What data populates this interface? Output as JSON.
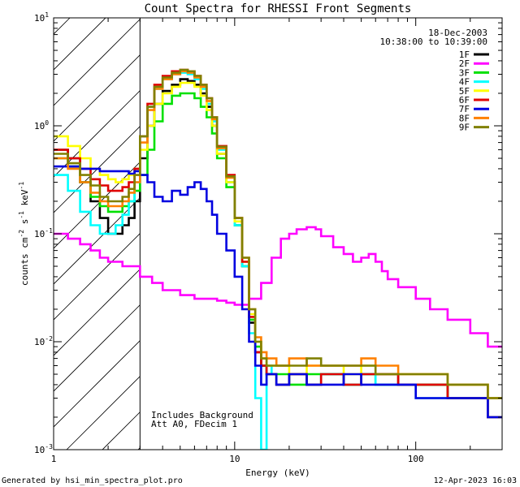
{
  "chart_data": {
    "type": "line",
    "title": "Count Spectra for RHESSI Front Segments",
    "xlabel": "Energy (keV)",
    "ylabel": "counts cm-2 s-1 keV-1",
    "xscale": "log",
    "yscale": "log",
    "xlim": [
      1,
      300
    ],
    "ylim": [
      0.001,
      10
    ],
    "x_tick_labels": [
      {
        "value": 1,
        "label": "1"
      },
      {
        "value": 10,
        "label": "10"
      },
      {
        "value": 100,
        "label": "100"
      }
    ],
    "y_tick_labels": [
      {
        "value": 10,
        "base": "10",
        "exp": "1"
      },
      {
        "value": 1,
        "base": "10",
        "exp": "0"
      },
      {
        "value": 0.1,
        "base": "10",
        "exp": "-1"
      },
      {
        "value": 0.01,
        "base": "10",
        "exp": "-2"
      },
      {
        "value": 0.001,
        "base": "10",
        "exp": "-3"
      }
    ],
    "date": "18-Dec-2003",
    "time_range": "10:38:00 to 10:39:00",
    "hatched_region_max_energy": 3,
    "annotations": [
      "Includes Background",
      "Att A0, FDecim 1"
    ],
    "footer_left": "Generated by hsi_min_spectra_plot.pro",
    "footer_right": "12-Apr-2023 16:03",
    "series": [
      {
        "name": "1F",
        "color": "#000000",
        "x": [
          1.2,
          1.4,
          1.6,
          1.8,
          2.0,
          2.2,
          2.4,
          2.6,
          2.8,
          3.0,
          3.3,
          3.6,
          4.0,
          4.5,
          5.0,
          5.5,
          6.0,
          6.5,
          7.0,
          7.5,
          8.0,
          9.0,
          10.0,
          11.0,
          12.0,
          13.0,
          14.0,
          15.0,
          17.0,
          20.0,
          25.0,
          30.0,
          40.0,
          50.0,
          60.0,
          80.0,
          100.0,
          150.0,
          200.0,
          250.0,
          300.0
        ],
        "y": [
          0.6,
          0.5,
          0.3,
          0.2,
          0.14,
          0.1,
          0.1,
          0.12,
          0.14,
          0.2,
          0.5,
          1.0,
          1.6,
          2.1,
          2.4,
          2.7,
          2.6,
          2.4,
          2.0,
          1.5,
          1.0,
          0.55,
          0.3,
          0.12,
          0.05,
          0.015,
          0.008,
          0.006,
          0.005,
          0.004,
          0.005,
          0.004,
          0.005,
          0.004,
          0.005,
          0.005,
          0.004,
          0.004,
          0.003,
          0.003,
          0.002
        ]
      },
      {
        "name": "2F",
        "color": "#ff00ff",
        "x": [
          1.2,
          1.4,
          1.6,
          1.8,
          2.0,
          2.2,
          2.4,
          2.6,
          2.8,
          3.0,
          3.5,
          4.0,
          5.0,
          6.0,
          7.0,
          8.0,
          9.0,
          10.0,
          12.0,
          14.0,
          16.0,
          18.0,
          20.0,
          22.0,
          25.0,
          28.0,
          30.0,
          35.0,
          40.0,
          45.0,
          50.0,
          55.0,
          60.0,
          65.0,
          70.0,
          80.0,
          100.0,
          120.0,
          150.0,
          200.0,
          250.0,
          300.0
        ],
        "y": [
          0.1,
          0.09,
          0.08,
          0.07,
          0.06,
          0.055,
          0.055,
          0.05,
          0.05,
          0.05,
          0.04,
          0.035,
          0.03,
          0.027,
          0.025,
          0.025,
          0.024,
          0.023,
          0.022,
          0.025,
          0.035,
          0.06,
          0.09,
          0.1,
          0.11,
          0.115,
          0.11,
          0.095,
          0.075,
          0.065,
          0.055,
          0.06,
          0.065,
          0.055,
          0.045,
          0.038,
          0.032,
          0.025,
          0.02,
          0.016,
          0.012,
          0.009
        ]
      },
      {
        "name": "3F",
        "color": "#00e000",
        "x": [
          1.2,
          1.4,
          1.6,
          1.8,
          2.0,
          2.2,
          2.4,
          2.6,
          2.8,
          3.0,
          3.3,
          3.6,
          4.0,
          4.5,
          5.0,
          5.5,
          6.0,
          6.5,
          7.0,
          7.5,
          8.0,
          9.0,
          10.0,
          11.0,
          12.0,
          13.0,
          14.0,
          15.0,
          17.0,
          20.0,
          25.0,
          30.0,
          40.0,
          50.0,
          60.0,
          80.0,
          100.0,
          150.0,
          200.0,
          250.0,
          300.0
        ],
        "y": [
          0.5,
          0.42,
          0.3,
          0.22,
          0.18,
          0.16,
          0.16,
          0.18,
          0.2,
          0.25,
          0.35,
          0.6,
          1.1,
          1.6,
          1.9,
          2.0,
          2.0,
          1.8,
          1.5,
          1.2,
          0.85,
          0.5,
          0.27,
          0.12,
          0.05,
          0.016,
          0.009,
          0.006,
          0.005,
          0.005,
          0.004,
          0.005,
          0.005,
          0.004,
          0.005,
          0.004,
          0.004,
          0.004,
          0.003,
          0.003,
          0.003
        ]
      },
      {
        "name": "4F",
        "color": "#00ffff",
        "x": [
          1.2,
          1.4,
          1.6,
          1.8,
          2.0,
          2.2,
          2.4,
          2.6,
          2.8,
          3.0,
          3.3,
          3.6,
          4.0,
          4.5,
          5.0,
          5.5,
          6.0,
          6.5,
          7.0,
          7.5,
          8.0,
          9.0,
          10.0,
          11.0,
          12.0,
          13.0,
          14.0,
          15.0,
          16.0,
          17.0,
          20.0,
          25.0,
          30.0,
          40.0,
          50.0,
          60.0,
          80.0,
          100.0,
          150.0,
          200.0,
          250.0,
          300.0
        ],
        "y": [
          0.35,
          0.25,
          0.16,
          0.12,
          0.1,
          0.1,
          0.12,
          0.15,
          0.2,
          0.3,
          0.8,
          1.5,
          2.2,
          2.7,
          3.0,
          3.1,
          3.0,
          2.7,
          2.2,
          1.6,
          1.1,
          0.6,
          0.3,
          0.12,
          0.05,
          0.012,
          0.003,
          0.001,
          0.006,
          0.005,
          0.004,
          0.005,
          0.004,
          0.005,
          0.004,
          0.005,
          0.004,
          0.004,
          0.003,
          0.003,
          0.003,
          0.002
        ]
      },
      {
        "name": "5F",
        "color": "#ffff00",
        "x": [
          1.2,
          1.4,
          1.6,
          1.8,
          2.0,
          2.2,
          2.4,
          2.6,
          2.8,
          3.0,
          3.3,
          3.6,
          4.0,
          4.5,
          5.0,
          5.5,
          6.0,
          6.5,
          7.0,
          7.5,
          8.0,
          9.0,
          10.0,
          11.0,
          12.0,
          13.0,
          14.0,
          15.0,
          17.0,
          20.0,
          25.0,
          30.0,
          40.0,
          50.0,
          60.0,
          80.0,
          100.0,
          150.0,
          200.0,
          250.0,
          300.0
        ],
        "y": [
          0.8,
          0.65,
          0.5,
          0.4,
          0.35,
          0.32,
          0.3,
          0.32,
          0.35,
          0.4,
          0.6,
          1.0,
          1.6,
          2.0,
          2.3,
          2.5,
          2.5,
          2.3,
          1.9,
          1.4,
          1.0,
          0.55,
          0.3,
          0.13,
          0.055,
          0.018,
          0.01,
          0.007,
          0.006,
          0.006,
          0.005,
          0.006,
          0.006,
          0.005,
          0.006,
          0.005,
          0.005,
          0.005,
          0.004,
          0.004,
          0.003
        ]
      },
      {
        "name": "6F",
        "color": "#e00000",
        "x": [
          1.2,
          1.4,
          1.6,
          1.8,
          2.0,
          2.2,
          2.4,
          2.6,
          2.8,
          3.0,
          3.3,
          3.6,
          4.0,
          4.5,
          5.0,
          5.5,
          6.0,
          6.5,
          7.0,
          7.5,
          8.0,
          9.0,
          10.0,
          11.0,
          12.0,
          13.0,
          14.0,
          15.0,
          17.0,
          20.0,
          25.0,
          30.0,
          40.0,
          50.0,
          60.0,
          80.0,
          100.0,
          150.0,
          200.0,
          250.0,
          300.0
        ],
        "y": [
          0.6,
          0.5,
          0.4,
          0.32,
          0.28,
          0.25,
          0.25,
          0.27,
          0.3,
          0.4,
          0.8,
          1.6,
          2.4,
          2.9,
          3.2,
          3.3,
          3.2,
          2.9,
          2.4,
          1.8,
          1.2,
          0.65,
          0.35,
          0.14,
          0.055,
          0.017,
          0.008,
          0.006,
          0.005,
          0.004,
          0.005,
          0.004,
          0.005,
          0.004,
          0.005,
          0.005,
          0.004,
          0.004,
          0.003,
          0.003,
          0.002
        ]
      },
      {
        "name": "7F",
        "color": "#0000e0",
        "x": [
          1.2,
          1.4,
          1.6,
          1.8,
          2.0,
          2.2,
          2.4,
          2.6,
          2.8,
          3.0,
          3.3,
          3.6,
          4.0,
          4.5,
          5.0,
          5.5,
          6.0,
          6.5,
          7.0,
          7.5,
          8.0,
          9.0,
          10.0,
          11.0,
          12.0,
          13.0,
          14.0,
          15.0,
          17.0,
          20.0,
          25.0,
          30.0,
          40.0,
          50.0,
          60.0,
          80.0,
          100.0,
          150.0,
          200.0,
          250.0,
          300.0
        ],
        "y": [
          0.42,
          0.42,
          0.4,
          0.4,
          0.38,
          0.38,
          0.38,
          0.38,
          0.36,
          0.38,
          0.35,
          0.3,
          0.22,
          0.2,
          0.25,
          0.23,
          0.27,
          0.3,
          0.26,
          0.2,
          0.15,
          0.1,
          0.07,
          0.04,
          0.02,
          0.01,
          0.006,
          0.004,
          0.005,
          0.004,
          0.005,
          0.004,
          0.004,
          0.005,
          0.004,
          0.004,
          0.004,
          0.003,
          0.003,
          0.003,
          0.002
        ]
      },
      {
        "name": "8F",
        "color": "#ff8000",
        "x": [
          1.2,
          1.4,
          1.6,
          1.8,
          2.0,
          2.2,
          2.4,
          2.6,
          2.8,
          3.0,
          3.3,
          3.6,
          4.0,
          4.5,
          5.0,
          5.5,
          6.0,
          6.5,
          7.0,
          7.5,
          8.0,
          9.0,
          10.0,
          11.0,
          12.0,
          13.0,
          14.0,
          15.0,
          17.0,
          20.0,
          25.0,
          30.0,
          40.0,
          50.0,
          60.0,
          80.0,
          100.0,
          150.0,
          200.0,
          250.0,
          300.0
        ],
        "y": [
          0.5,
          0.4,
          0.3,
          0.24,
          0.2,
          0.18,
          0.18,
          0.2,
          0.24,
          0.3,
          0.7,
          1.4,
          2.2,
          2.7,
          3.0,
          3.2,
          3.1,
          2.8,
          2.3,
          1.7,
          1.15,
          0.62,
          0.33,
          0.14,
          0.06,
          0.02,
          0.011,
          0.008,
          0.007,
          0.006,
          0.007,
          0.006,
          0.006,
          0.006,
          0.007,
          0.006,
          0.005,
          0.005,
          0.004,
          0.004,
          0.003
        ]
      },
      {
        "name": "9F",
        "color": "#808000",
        "x": [
          1.2,
          1.4,
          1.6,
          1.8,
          2.0,
          2.2,
          2.4,
          2.6,
          2.8,
          3.0,
          3.3,
          3.6,
          4.0,
          4.5,
          5.0,
          5.5,
          6.0,
          6.5,
          7.0,
          7.5,
          8.0,
          9.0,
          10.0,
          11.0,
          12.0,
          13.0,
          14.0,
          15.0,
          17.0,
          20.0,
          25.0,
          30.0,
          40.0,
          50.0,
          60.0,
          80.0,
          100.0,
          150.0,
          200.0,
          250.0,
          300.0
        ],
        "y": [
          0.55,
          0.45,
          0.35,
          0.28,
          0.22,
          0.2,
          0.2,
          0.22,
          0.26,
          0.35,
          0.8,
          1.5,
          2.3,
          2.8,
          3.1,
          3.3,
          3.2,
          2.9,
          2.4,
          1.8,
          1.2,
          0.64,
          0.34,
          0.14,
          0.06,
          0.02,
          0.01,
          0.007,
          0.006,
          0.006,
          0.006,
          0.007,
          0.006,
          0.006,
          0.006,
          0.005,
          0.005,
          0.005,
          0.004,
          0.004,
          0.003
        ]
      }
    ]
  }
}
